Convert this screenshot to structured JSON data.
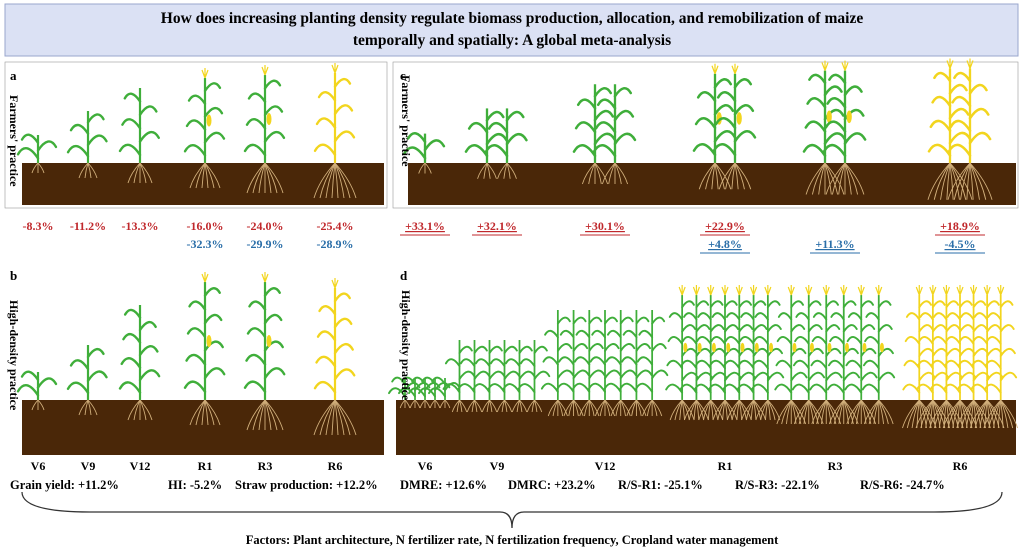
{
  "title": "How does increasing planting density regulate biomass production, allocation, and remobilization of maize temporally and spatially: A global meta-analysis",
  "panels": [
    {
      "letter": "a",
      "practice": "Farmers' practice"
    },
    {
      "letter": "b",
      "practice": "High-density practice"
    },
    {
      "letter": "c",
      "practice": "Farmers' practice"
    },
    {
      "letter": "d",
      "practice": "High-density practice"
    }
  ],
  "stages": [
    "V6",
    "V9",
    "V12",
    "R1",
    "R3",
    "R6"
  ],
  "changes_a": {
    "red": [
      "-8.3%",
      "-11.2%",
      "-13.3%",
      "-16.0%",
      "-24.0%",
      "-25.4%"
    ],
    "blue": [
      null,
      null,
      null,
      "-32.3%",
      "-29.9%",
      "-28.9%"
    ]
  },
  "changes_c": {
    "red": [
      "+33.1%",
      "+32.1%",
      "+30.1%",
      "+22.9%",
      null,
      "+18.9%"
    ],
    "blue": [
      null,
      null,
      null,
      "+4.8%",
      "+11.3%",
      "-4.5%"
    ]
  },
  "summary": [
    "Grain yield: +11.2%",
    "HI: -5.2%",
    "Straw production: +12.2%",
    "DMRE: +12.6%",
    "DMRC: +23.2%",
    "R/S-R1: -25.1%",
    "R/S-R3: -22.1%",
    "R/S-R6: -24.7%"
  ],
  "factors": "Factors: Plant architecture, N fertilizer rate, N fertilization frequency, Cropland water management"
}
